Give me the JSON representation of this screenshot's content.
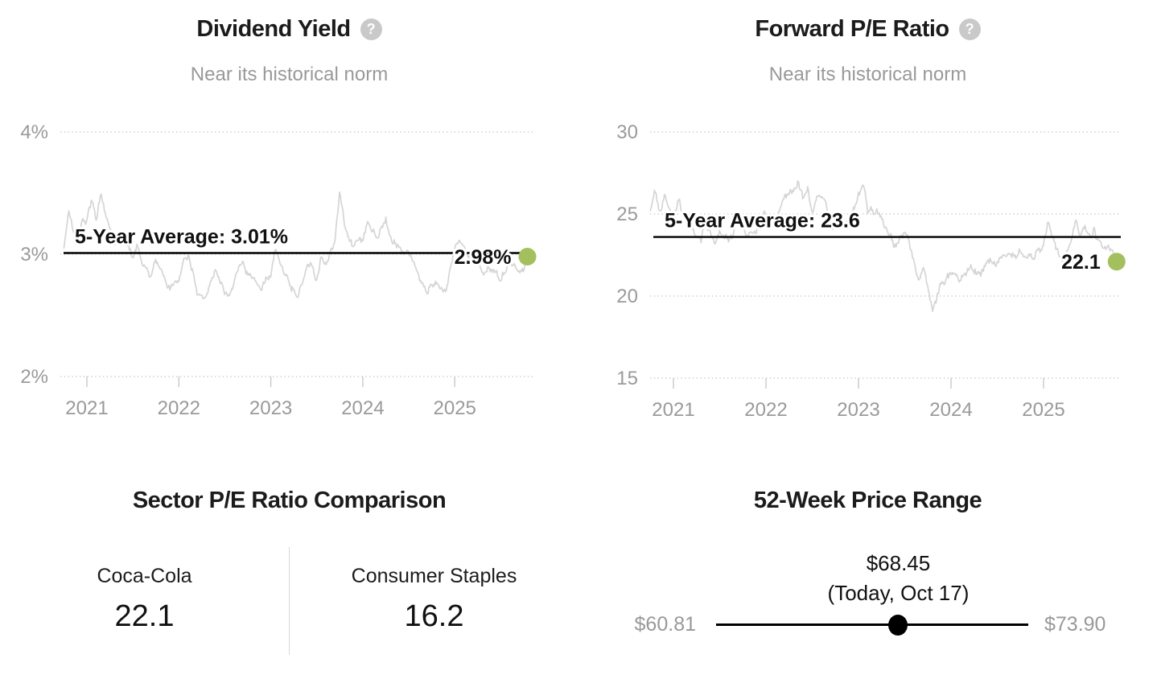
{
  "colors": {
    "accent_dot": "#a4c05e",
    "title_text": "#1b1b1b",
    "muted_text": "#999999",
    "grid_line": "#cdcdcd",
    "series_line": "#d5d5d5",
    "average_line": "#000000",
    "help_icon_bg": "#c9c9c9",
    "slider": "#000000",
    "divider": "#d9d9d9"
  },
  "icons": {
    "help_glyph": "?"
  },
  "chart_data": [
    {
      "type": "line",
      "title": "Dividend Yield",
      "subtitle": "Near its historical norm",
      "ylim": [
        2,
        4
      ],
      "xlim": [
        2020.75,
        2025.79
      ],
      "grid": "dotted-horizontal",
      "legend": "none",
      "y_ticks": [
        {
          "v": 4,
          "label": "4%"
        },
        {
          "v": 3,
          "label": "3%"
        },
        {
          "v": 2,
          "label": "2%"
        }
      ],
      "x_ticks": [
        {
          "v": 2021,
          "label": "2021"
        },
        {
          "v": 2022,
          "label": "2022"
        },
        {
          "v": 2023,
          "label": "2023"
        },
        {
          "v": 2024,
          "label": "2024"
        },
        {
          "v": 2025,
          "label": "2025"
        }
      ],
      "average": {
        "value": 3.01,
        "label": "5-Year Average: 3.01%"
      },
      "current": {
        "value": 2.98,
        "label": "2.98%"
      },
      "series": [
        {
          "name": "Dividend Yield",
          "x": [
            2020.75,
            2020.8,
            2020.9,
            2020.95,
            2021.0,
            2021.05,
            2021.1,
            2021.15,
            2021.2,
            2021.3,
            2021.35,
            2021.45,
            2021.5,
            2021.55,
            2021.6,
            2021.7,
            2021.75,
            2021.85,
            2021.9,
            2022.0,
            2022.05,
            2022.1,
            2022.15,
            2022.2,
            2022.3,
            2022.35,
            2022.4,
            2022.5,
            2022.55,
            2022.65,
            2022.7,
            2022.8,
            2022.9,
            2023.0,
            2023.05,
            2023.1,
            2023.2,
            2023.3,
            2023.4,
            2023.5,
            2023.55,
            2023.6,
            2023.7,
            2023.75,
            2023.8,
            2023.9,
            2024.0,
            2024.05,
            2024.15,
            2024.25,
            2024.3,
            2024.4,
            2024.5,
            2024.6,
            2024.7,
            2024.8,
            2024.9,
            2025.0,
            2025.05,
            2025.15,
            2025.25,
            2025.3,
            2025.4,
            2025.5,
            2025.6,
            2025.7,
            2025.79
          ],
          "values": [
            3.05,
            3.35,
            3.1,
            3.3,
            3.28,
            3.45,
            3.25,
            3.48,
            3.3,
            3.05,
            3.18,
            3.12,
            2.95,
            3.05,
            2.9,
            2.78,
            2.95,
            2.82,
            2.72,
            2.78,
            2.95,
            3.02,
            2.85,
            2.68,
            2.65,
            2.8,
            2.92,
            2.7,
            2.65,
            2.88,
            2.95,
            2.78,
            2.7,
            2.82,
            3.02,
            2.95,
            2.78,
            2.68,
            2.9,
            2.82,
            3.0,
            2.92,
            3.1,
            3.52,
            3.25,
            3.05,
            3.12,
            3.28,
            3.1,
            3.32,
            3.15,
            3.05,
            3.02,
            2.85,
            2.66,
            2.8,
            2.72,
            3.02,
            3.12,
            2.98,
            3.08,
            2.88,
            2.92,
            2.84,
            2.95,
            2.88,
            2.98
          ]
        }
      ]
    },
    {
      "type": "line",
      "title": "Forward P/E Ratio",
      "subtitle": "Near its historical norm",
      "ylim": [
        15,
        30
      ],
      "xlim": [
        2020.75,
        2025.79
      ],
      "grid": "dotted-horizontal",
      "legend": "none",
      "y_ticks": [
        {
          "v": 30,
          "label": "30"
        },
        {
          "v": 25,
          "label": "25"
        },
        {
          "v": 20,
          "label": "20"
        },
        {
          "v": 15,
          "label": "15"
        }
      ],
      "x_ticks": [
        {
          "v": 2021,
          "label": "2021"
        },
        {
          "v": 2022,
          "label": "2022"
        },
        {
          "v": 2023,
          "label": "2023"
        },
        {
          "v": 2024,
          "label": "2024"
        },
        {
          "v": 2025,
          "label": "2025"
        }
      ],
      "average": {
        "value": 23.6,
        "label": "5-Year Average: 23.6"
      },
      "current": {
        "value": 22.1,
        "label": "22.1"
      },
      "series": [
        {
          "name": "Forward P/E Ratio",
          "x": [
            2020.75,
            2020.8,
            2020.85,
            2020.9,
            2021.0,
            2021.05,
            2021.1,
            2021.2,
            2021.3,
            2021.35,
            2021.45,
            2021.5,
            2021.6,
            2021.7,
            2021.8,
            2021.9,
            2022.0,
            2022.1,
            2022.2,
            2022.3,
            2022.35,
            2022.4,
            2022.45,
            2022.5,
            2022.55,
            2022.65,
            2022.7,
            2022.8,
            2022.9,
            2023.0,
            2023.05,
            2023.1,
            2023.2,
            2023.3,
            2023.4,
            2023.5,
            2023.6,
            2023.65,
            2023.7,
            2023.8,
            2023.9,
            2024.0,
            2024.1,
            2024.2,
            2024.3,
            2024.4,
            2024.5,
            2024.6,
            2024.7,
            2024.8,
            2024.9,
            2025.0,
            2025.05,
            2025.1,
            2025.2,
            2025.3,
            2025.35,
            2025.4,
            2025.45,
            2025.5,
            2025.55,
            2025.6,
            2025.65,
            2025.7,
            2025.79
          ],
          "values": [
            25.2,
            26.3,
            25.0,
            26.4,
            24.6,
            26.2,
            25.0,
            24.0,
            23.4,
            24.6,
            23.2,
            24.2,
            23.3,
            24.4,
            23.6,
            24.2,
            25.1,
            24.2,
            25.6,
            26.2,
            27.0,
            25.8,
            26.5,
            25.0,
            26.3,
            25.8,
            24.3,
            25.1,
            24.5,
            25.9,
            26.4,
            24.9,
            25.1,
            24.1,
            23.3,
            23.9,
            22.2,
            21.2,
            21.6,
            19.4,
            20.9,
            21.3,
            20.9,
            21.6,
            21.2,
            21.9,
            22.1,
            22.4,
            22.1,
            22.7,
            22.3,
            23.1,
            24.7,
            23.3,
            22.0,
            23.2,
            24.9,
            23.8,
            24.5,
            23.4,
            23.9,
            23.0,
            22.6,
            22.9,
            22.1
          ]
        }
      ]
    },
    {
      "type": "table",
      "title": "Sector P/E Ratio Comparison",
      "columns": [
        {
          "label": "Coca-Cola",
          "value": "22.1"
        },
        {
          "label": "Consumer Staples",
          "value": "16.2"
        }
      ]
    },
    {
      "type": "range",
      "title": "52-Week Price Range",
      "min": {
        "value": 60.81,
        "label": "$60.81"
      },
      "max": {
        "value": 73.9,
        "label": "$73.90"
      },
      "current": {
        "value": 68.45,
        "label": "$68.45",
        "note": "(Today, Oct 17)"
      }
    }
  ]
}
